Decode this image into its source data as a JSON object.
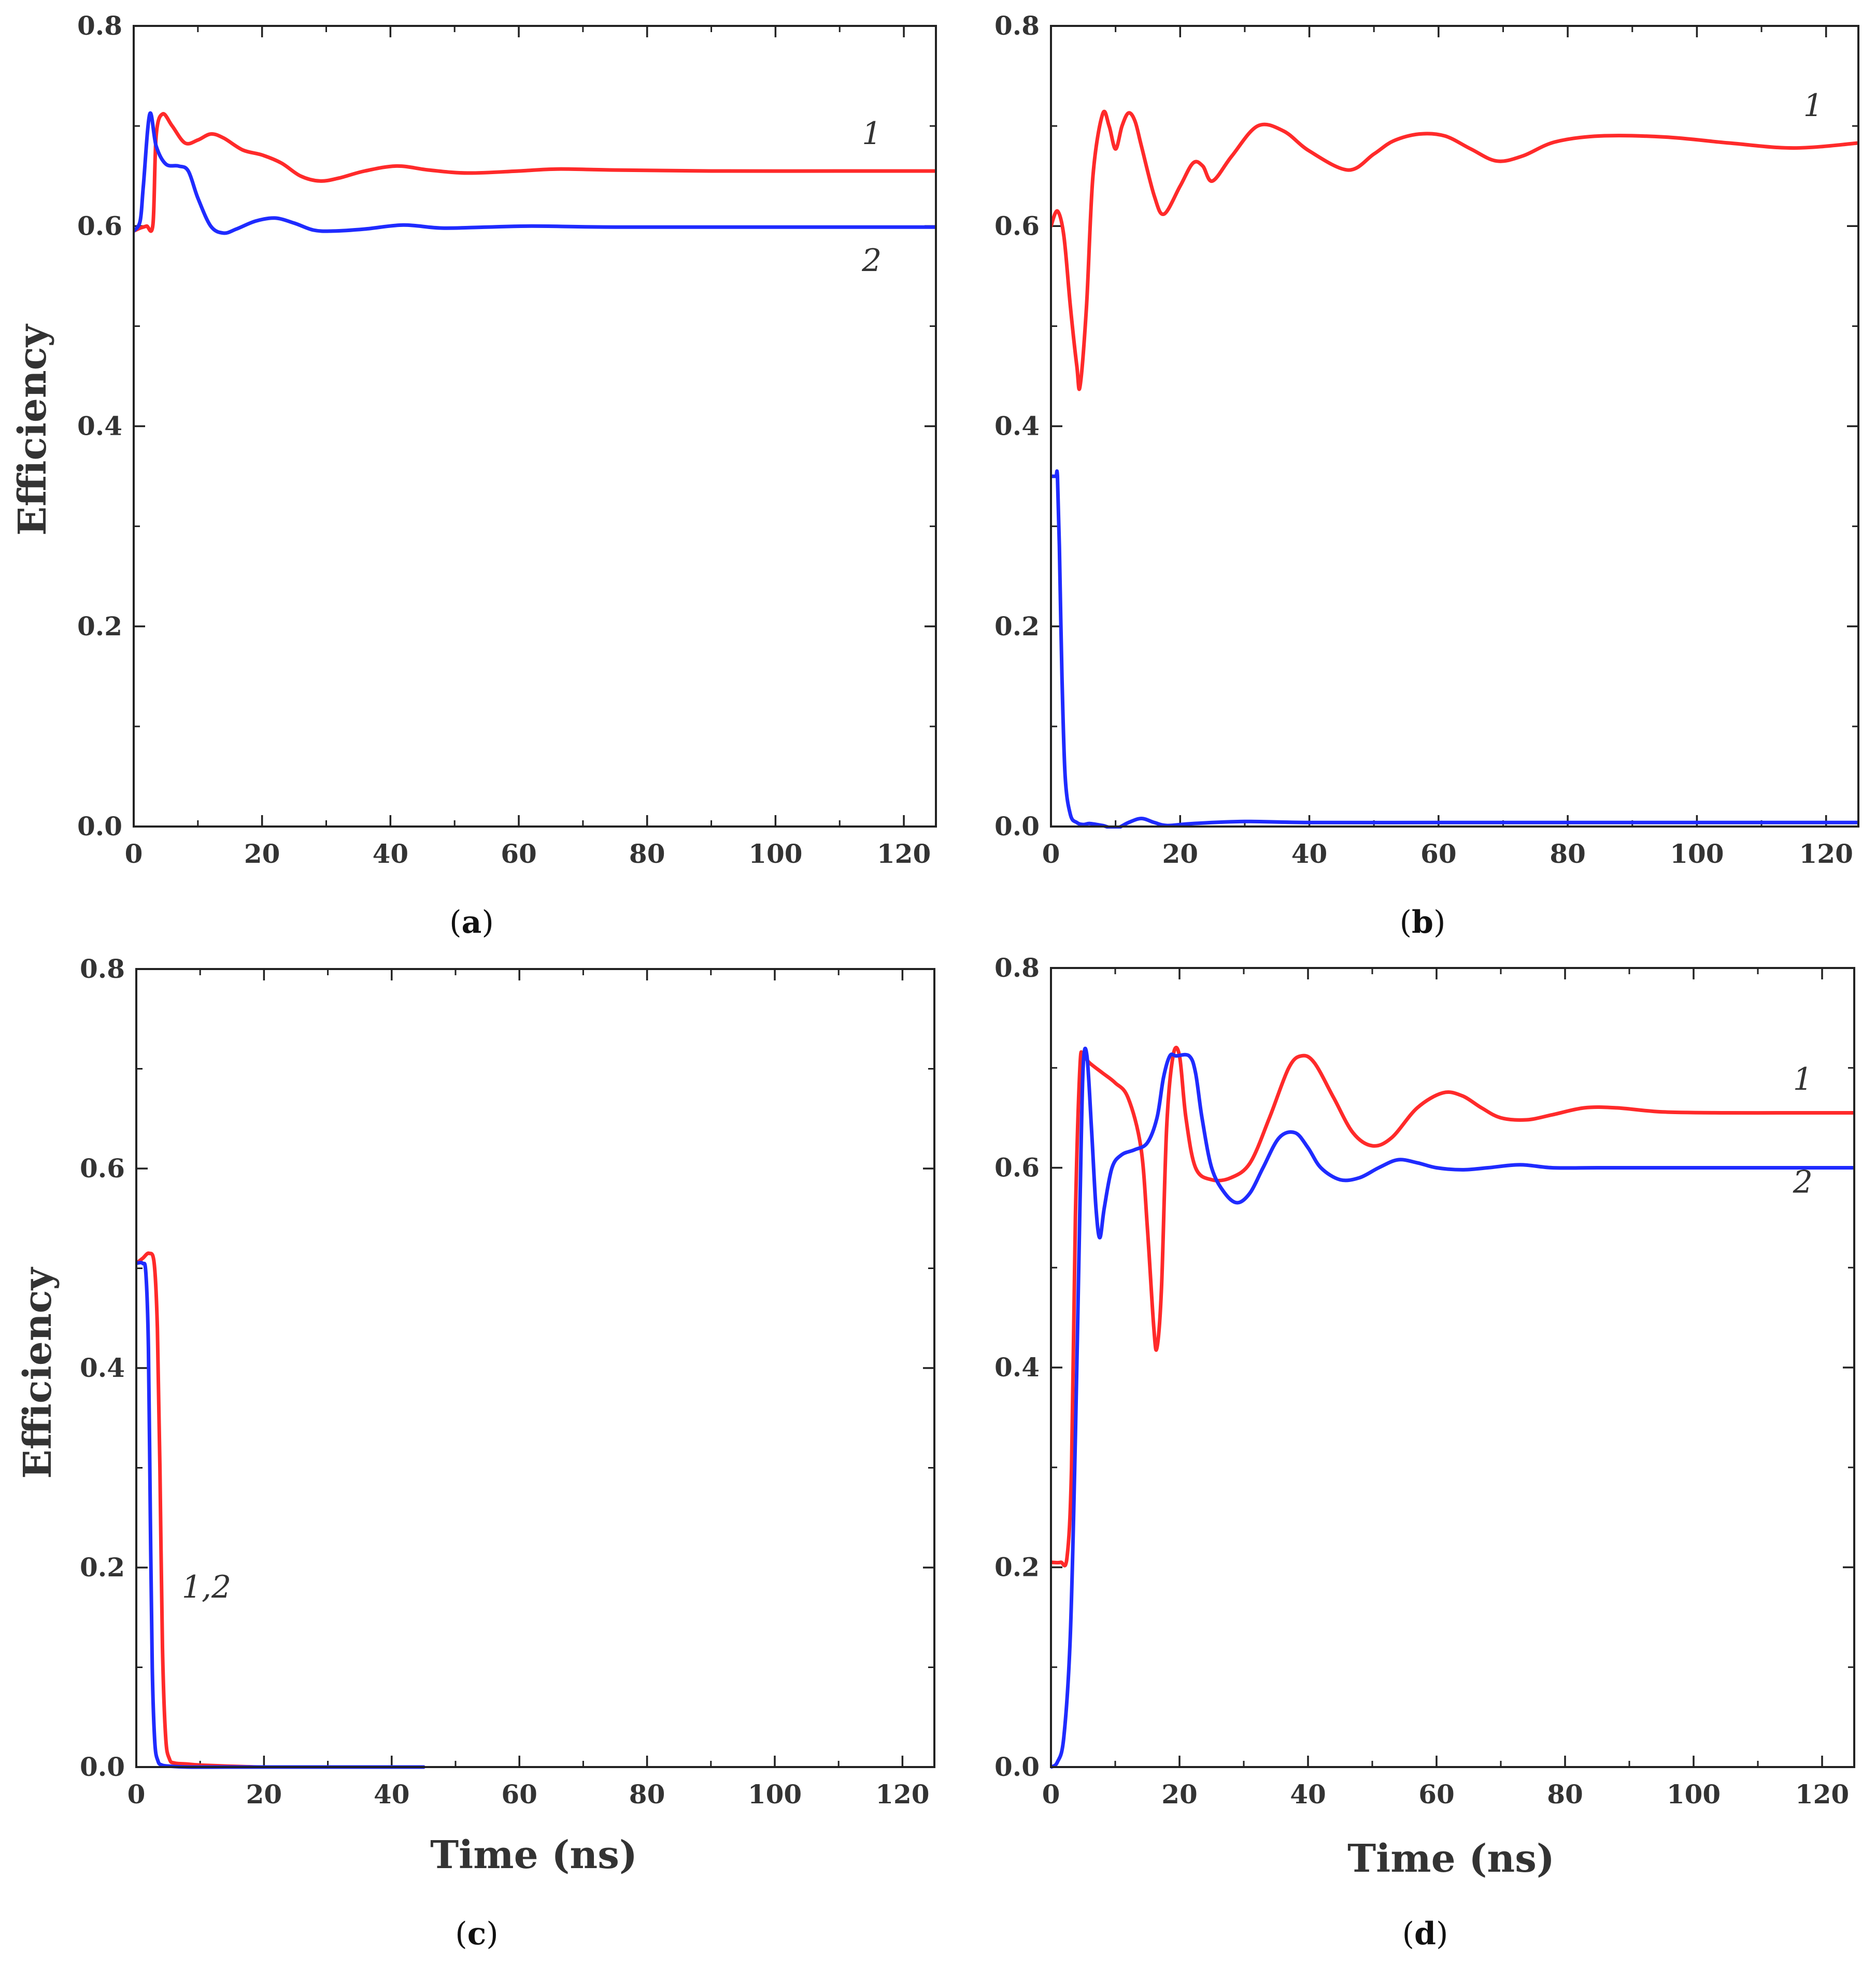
{
  "colors": {
    "series_1": "#ff2a2a",
    "series_2": "#1f2bff",
    "axis": "#222222"
  },
  "chart_data": [
    {
      "panel": "a",
      "type": "line",
      "caption": {
        "open": "(",
        "letter": "a",
        "close": ")"
      },
      "xlabel": "",
      "ylabel": "Efficiency",
      "xlim": [
        0,
        125
      ],
      "ylim": [
        0,
        0.8
      ],
      "xticks": [
        "0",
        "20",
        "40",
        "60",
        "80",
        "100",
        "120"
      ],
      "yticks": [
        "0.0",
        "0.2",
        "0.4",
        "0.6",
        "0.8"
      ],
      "series": [
        {
          "name": "1",
          "color": "#ff2a2a",
          "x": [
            0,
            1,
            2,
            3,
            3.5,
            4.5,
            6,
            8,
            10,
            12,
            14,
            17,
            20,
            23,
            26,
            29,
            32,
            36,
            41,
            46,
            52,
            60,
            66,
            75,
            90,
            110,
            125
          ],
          "y": [
            0.595,
            0.598,
            0.6,
            0.602,
            0.69,
            0.712,
            0.7,
            0.683,
            0.686,
            0.692,
            0.688,
            0.676,
            0.671,
            0.663,
            0.65,
            0.645,
            0.648,
            0.655,
            0.66,
            0.656,
            0.653,
            0.655,
            0.657,
            0.656,
            0.655,
            0.655,
            0.655
          ]
        },
        {
          "name": "2",
          "color": "#1f2bff",
          "x": [
            0,
            1,
            1.5,
            2.5,
            3.5,
            5,
            7,
            8.5,
            10,
            12,
            14,
            16,
            19,
            22,
            25,
            28,
            31,
            36,
            42,
            48,
            55,
            62,
            75,
            100,
            125
          ],
          "y": [
            0.595,
            0.605,
            0.64,
            0.712,
            0.68,
            0.662,
            0.66,
            0.655,
            0.628,
            0.6,
            0.593,
            0.597,
            0.605,
            0.608,
            0.603,
            0.596,
            0.595,
            0.597,
            0.601,
            0.598,
            0.599,
            0.6,
            0.599,
            0.599,
            0.599
          ]
        }
      ],
      "annotations": [
        {
          "text": "1",
          "x": 115,
          "y": 0.682
        },
        {
          "text": "2",
          "x": 115,
          "y": 0.555
        }
      ]
    },
    {
      "panel": "b",
      "type": "line",
      "caption": {
        "open": "(",
        "letter": "b",
        "close": ")"
      },
      "xlabel": "",
      "ylabel": "",
      "xlim": [
        0,
        125
      ],
      "ylim": [
        0,
        0.8
      ],
      "xticks": [
        "0",
        "20",
        "40",
        "60",
        "80",
        "100",
        "120"
      ],
      "yticks": [
        "0.0",
        "0.2",
        "0.4",
        "0.6",
        "0.8"
      ],
      "series": [
        {
          "name": "1",
          "color": "#ff2a2a",
          "x": [
            0,
            1,
            2,
            3,
            4,
            4.5,
            5.5,
            6.5,
            8,
            9,
            10,
            11,
            12,
            13,
            14,
            16,
            17.5,
            20,
            22,
            23.5,
            25,
            28,
            32,
            36,
            40,
            46,
            50,
            53,
            57,
            61,
            65,
            69,
            73,
            78,
            85,
            95,
            105,
            115,
            125
          ],
          "y": [
            0.6,
            0.615,
            0.59,
            0.52,
            0.46,
            0.44,
            0.52,
            0.65,
            0.712,
            0.7,
            0.677,
            0.7,
            0.713,
            0.705,
            0.68,
            0.63,
            0.612,
            0.64,
            0.663,
            0.66,
            0.645,
            0.67,
            0.7,
            0.695,
            0.675,
            0.656,
            0.672,
            0.685,
            0.692,
            0.69,
            0.677,
            0.665,
            0.67,
            0.684,
            0.69,
            0.689,
            0.683,
            0.678,
            0.683
          ]
        },
        {
          "name": "2",
          "color": "#1f2bff",
          "x": [
            0,
            0.4,
            0.8,
            1.0,
            1.3,
            1.7,
            2.2,
            3,
            4,
            5,
            6,
            8,
            10,
            12,
            14,
            16,
            18,
            22,
            30,
            40,
            60,
            80,
            100,
            125
          ],
          "y": [
            0.35,
            0.35,
            0.35,
            0.35,
            0.28,
            0.15,
            0.05,
            0.012,
            0.004,
            0.002,
            0.003,
            0.001,
            -0.002,
            0.004,
            0.008,
            0.004,
            0.001,
            0.003,
            0.005,
            0.004,
            0.004,
            0.004,
            0.004,
            0.004
          ]
        }
      ],
      "annotations": [
        {
          "text": "1",
          "x": 118,
          "y": 0.71
        }
      ]
    },
    {
      "panel": "c",
      "type": "line",
      "caption": {
        "open": "(",
        "letter": "c",
        "close": ")"
      },
      "xlabel": "Time (ns)",
      "ylabel": "Efficiency",
      "xlim": [
        0,
        125
      ],
      "ylim": [
        0,
        0.8
      ],
      "xticks": [
        "0",
        "20",
        "40",
        "60",
        "80",
        "100",
        "120"
      ],
      "yticks": [
        "0.0",
        "0.2",
        "0.4",
        "0.6",
        "0.8"
      ],
      "series": [
        {
          "name": "1",
          "color": "#ff2a2a",
          "x": [
            0,
            1,
            2,
            2.8,
            3.3,
            3.7,
            4.1,
            4.6,
            5.2,
            6,
            8,
            10,
            14,
            20,
            30,
            45
          ],
          "y": [
            0.505,
            0.51,
            0.515,
            0.505,
            0.44,
            0.3,
            0.12,
            0.03,
            0.008,
            0.004,
            0.003,
            0.002,
            0.001,
            0.0,
            0.0,
            0.0
          ]
        },
        {
          "name": "2",
          "color": "#1f2bff",
          "x": [
            0,
            1,
            1.5,
            1.9,
            2.2,
            2.5,
            2.9,
            3.4,
            4,
            5,
            8,
            14,
            20,
            30,
            45
          ],
          "y": [
            0.505,
            0.505,
            0.495,
            0.42,
            0.25,
            0.1,
            0.025,
            0.006,
            0.002,
            0.001,
            0.0,
            0.0,
            0.0,
            0.0,
            0.0
          ]
        }
      ],
      "annotations": [
        {
          "text": "1,2",
          "x": 11,
          "y": 0.17
        }
      ]
    },
    {
      "panel": "d",
      "type": "line",
      "caption": {
        "open": "(",
        "letter": "d",
        "close": ")"
      },
      "xlabel": "Time (ns)",
      "ylabel": "",
      "xlim": [
        0,
        125
      ],
      "ylim": [
        0,
        0.8
      ],
      "xticks": [
        "0",
        "20",
        "40",
        "60",
        "80",
        "100",
        "120"
      ],
      "yticks": [
        "0.0",
        "0.2",
        "0.4",
        "0.6",
        "0.8"
      ],
      "series": [
        {
          "name": "1",
          "color": "#ff2a2a",
          "x": [
            0,
            1.5,
            2.5,
            3.2,
            3.8,
            4.5,
            5,
            6,
            8,
            10,
            12,
            14,
            15,
            16,
            16.5,
            17.2,
            18,
            19,
            20,
            21,
            22.5,
            25,
            28,
            31,
            34,
            37,
            39,
            41,
            44,
            47,
            50,
            53,
            57,
            61,
            64,
            67,
            70,
            74,
            78,
            83,
            88,
            95,
            105,
            115,
            125
          ],
          "y": [
            0.205,
            0.205,
            0.21,
            0.3,
            0.55,
            0.7,
            0.712,
            0.705,
            0.695,
            0.685,
            0.67,
            0.62,
            0.54,
            0.44,
            0.42,
            0.48,
            0.64,
            0.712,
            0.712,
            0.65,
            0.6,
            0.588,
            0.59,
            0.605,
            0.65,
            0.7,
            0.712,
            0.705,
            0.67,
            0.635,
            0.622,
            0.63,
            0.66,
            0.675,
            0.672,
            0.66,
            0.65,
            0.648,
            0.653,
            0.66,
            0.66,
            0.656,
            0.655,
            0.655,
            0.655
          ]
        },
        {
          "name": "2",
          "color": "#1f2bff",
          "x": [
            0,
            1,
            2,
            3,
            3.8,
            4.5,
            5,
            5.6,
            6.3,
            7,
            7.6,
            8.3,
            9.5,
            11,
            13,
            15,
            16.5,
            17.5,
            18.5,
            19.5,
            21.5,
            22.5,
            23.5,
            25,
            27,
            29,
            31,
            33,
            35.5,
            38,
            40,
            42,
            45,
            48,
            51,
            54,
            57,
            60,
            64,
            68,
            73,
            78,
            85,
            95,
            110,
            125
          ],
          "y": [
            0.0,
            0.005,
            0.03,
            0.13,
            0.33,
            0.56,
            0.7,
            0.712,
            0.64,
            0.56,
            0.53,
            0.56,
            0.6,
            0.613,
            0.618,
            0.625,
            0.65,
            0.69,
            0.712,
            0.712,
            0.712,
            0.695,
            0.65,
            0.6,
            0.575,
            0.565,
            0.575,
            0.6,
            0.63,
            0.635,
            0.62,
            0.6,
            0.588,
            0.59,
            0.6,
            0.608,
            0.605,
            0.6,
            0.598,
            0.6,
            0.603,
            0.6,
            0.6,
            0.6,
            0.6,
            0.6
          ]
        }
      ],
      "annotations": [
        {
          "text": "1",
          "x": 117,
          "y": 0.678
        },
        {
          "text": "2",
          "x": 117,
          "y": 0.575
        }
      ]
    }
  ]
}
